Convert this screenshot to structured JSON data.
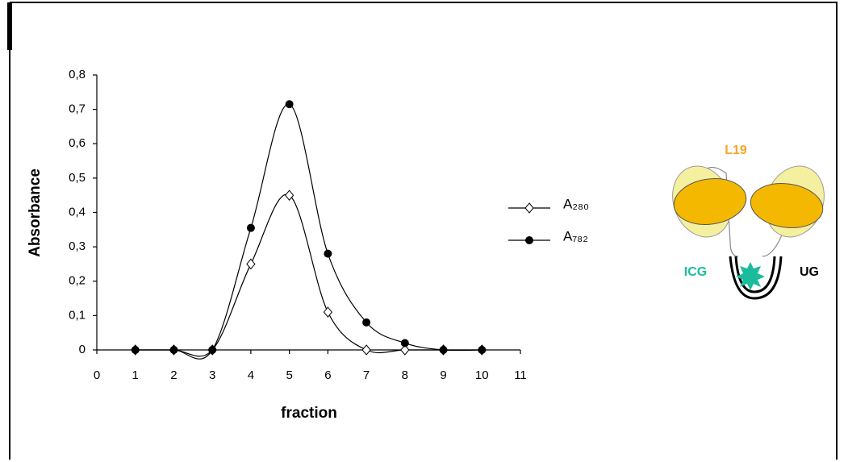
{
  "chart_data": {
    "type": "line",
    "x_label": "fraction",
    "y_label": "Absorbance",
    "x": [
      1,
      2,
      3,
      4,
      5,
      6,
      7,
      8,
      9,
      10
    ],
    "series": [
      {
        "name": "A₂₈₀",
        "color": "#000000",
        "marker": "diamond",
        "values": [
          0,
          0,
          0,
          0.25,
          0.45,
          0.11,
          0,
          0,
          0,
          0
        ]
      },
      {
        "name": "A₇₈₂",
        "color": "#000000",
        "marker": "circle",
        "values": [
          0,
          0,
          0,
          0.355,
          0.715,
          0.28,
          0.08,
          0.02,
          0,
          0
        ]
      }
    ],
    "xlim": [
      0,
      11
    ],
    "xticks": [
      0,
      1,
      2,
      3,
      4,
      5,
      6,
      7,
      8,
      9,
      10,
      11
    ],
    "ylim": [
      0,
      0.8
    ],
    "yticks": [
      0,
      {
        "value": 0.1,
        "label": "0,1"
      },
      {
        "value": 0.2,
        "label": "0,2"
      },
      {
        "value": 0.3,
        "label": "0,3"
      },
      {
        "value": 0.4,
        "label": "0,4"
      },
      {
        "value": 0.5,
        "label": "0,5"
      },
      {
        "value": 0.6,
        "label": "0,6"
      },
      {
        "value": 0.7,
        "label": "0,7"
      },
      {
        "value": 0.8,
        "label": "0,8"
      }
    ],
    "grid": false,
    "legend": "right",
    "annotations": [
      "L19",
      "ICG",
      "UG"
    ]
  }
}
